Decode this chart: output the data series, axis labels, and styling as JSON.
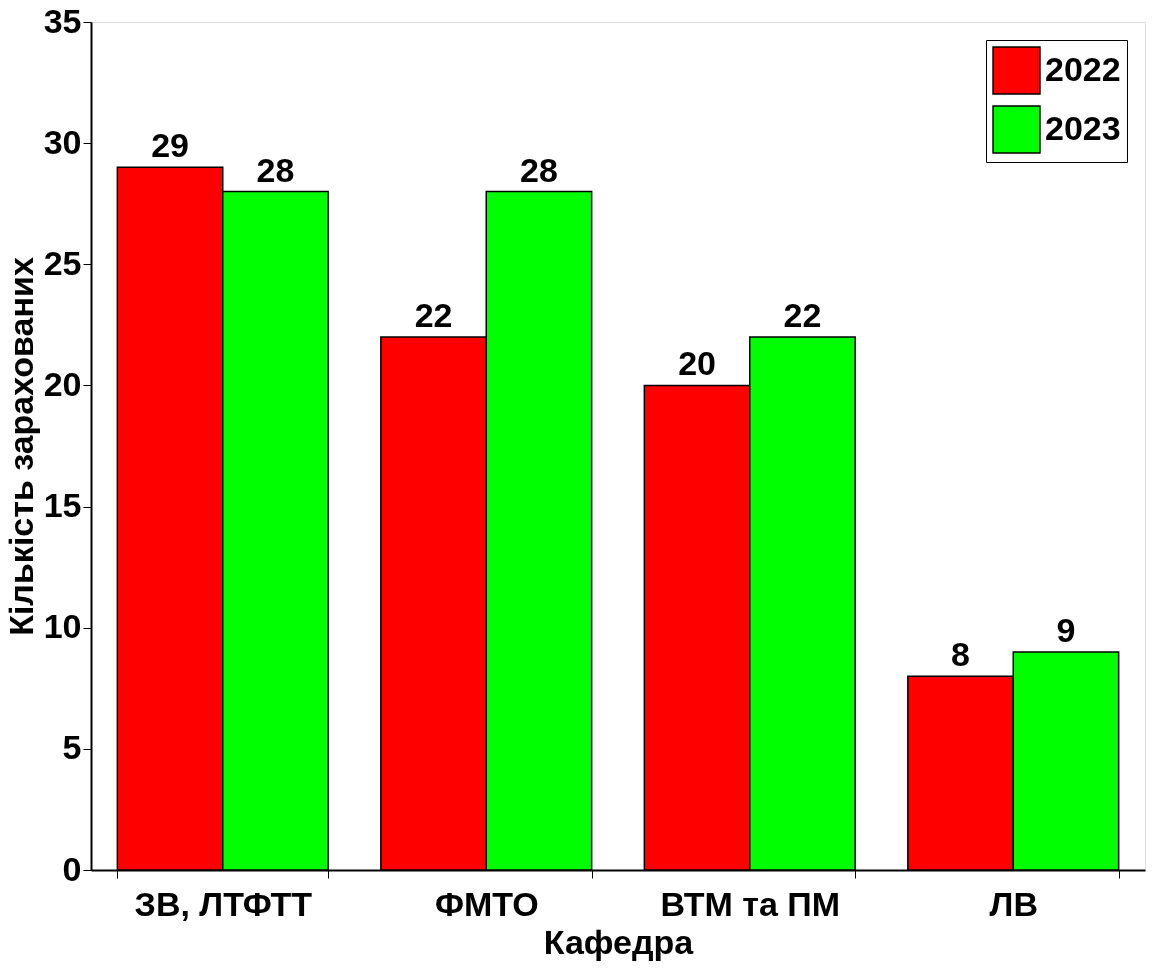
{
  "chart_data": {
    "type": "bar",
    "xlabel": "Кафедра",
    "ylabel": "Кількість зарахованих",
    "categories": [
      "ЗВ, ЛТФТТ",
      "ФМТО",
      "ВТМ та ПМ",
      "ЛВ"
    ],
    "series": [
      {
        "name": "2022",
        "color": "#ff0000",
        "values": [
          29,
          22,
          20,
          8
        ]
      },
      {
        "name": "2023",
        "color": "#00ff00",
        "values": [
          28,
          28,
          22,
          9
        ]
      }
    ],
    "ylim": [
      0,
      35
    ],
    "yticks": [
      0,
      5,
      10,
      15,
      20,
      25,
      30,
      35
    ],
    "data_labels": true,
    "legend": "top right",
    "grid": false
  }
}
